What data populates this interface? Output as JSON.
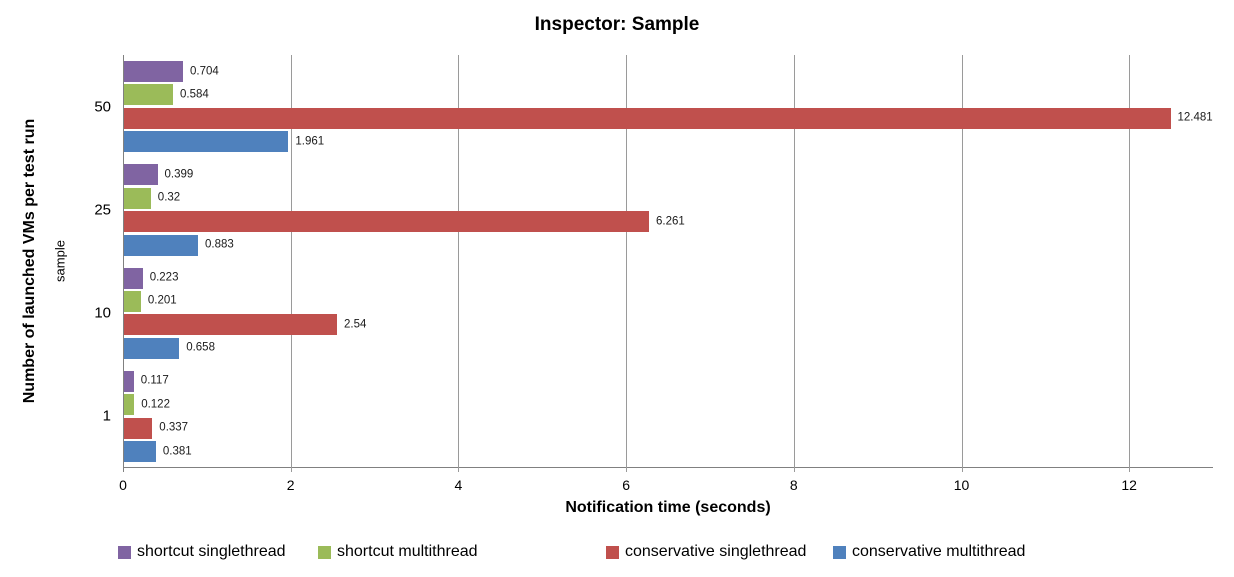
{
  "title": "Inspector: Sample",
  "chart_data": {
    "type": "bar",
    "orientation": "horizontal",
    "title": "Inspector: Sample",
    "xlabel": "Notification time (seconds)",
    "ylabel": "Number of launched VMs per test run",
    "ylabel_secondary": "sample",
    "categories": [
      "50",
      "25",
      "10",
      "1"
    ],
    "series": [
      {
        "name": "shortcut singlethread",
        "color": "#8064A2",
        "values": [
          0.704,
          0.399,
          0.223,
          0.117
        ],
        "labels": [
          "0.704",
          "0.399",
          "0.223",
          "0.117"
        ]
      },
      {
        "name": "shortcut multithread",
        "color": "#9BBB59",
        "values": [
          0.584,
          0.32,
          0.201,
          0.122
        ],
        "labels": [
          "0.584",
          "0.32",
          "0.201",
          "0.122"
        ]
      },
      {
        "name": "conservative singlethread",
        "color": "#C0504D",
        "values": [
          12.481,
          6.261,
          2.54,
          0.337
        ],
        "labels": [
          "12.481",
          "6.261",
          "2.54",
          "0.337"
        ]
      },
      {
        "name": "conservative multithread",
        "color": "#4F81BD",
        "values": [
          1.961,
          0.883,
          0.658,
          0.381
        ],
        "labels": [
          "1.961",
          "0.883",
          "0.658",
          "0.381"
        ]
      }
    ],
    "xlim": [
      0,
      13
    ],
    "x_ticks": [
      0,
      2,
      4,
      6,
      8,
      10,
      12
    ],
    "grid": true,
    "legend_position": "bottom"
  },
  "colors": {
    "background": "#FFFFFF",
    "gridline": "#9A9A9A",
    "axis_line": "#808080",
    "text": "#000000"
  }
}
